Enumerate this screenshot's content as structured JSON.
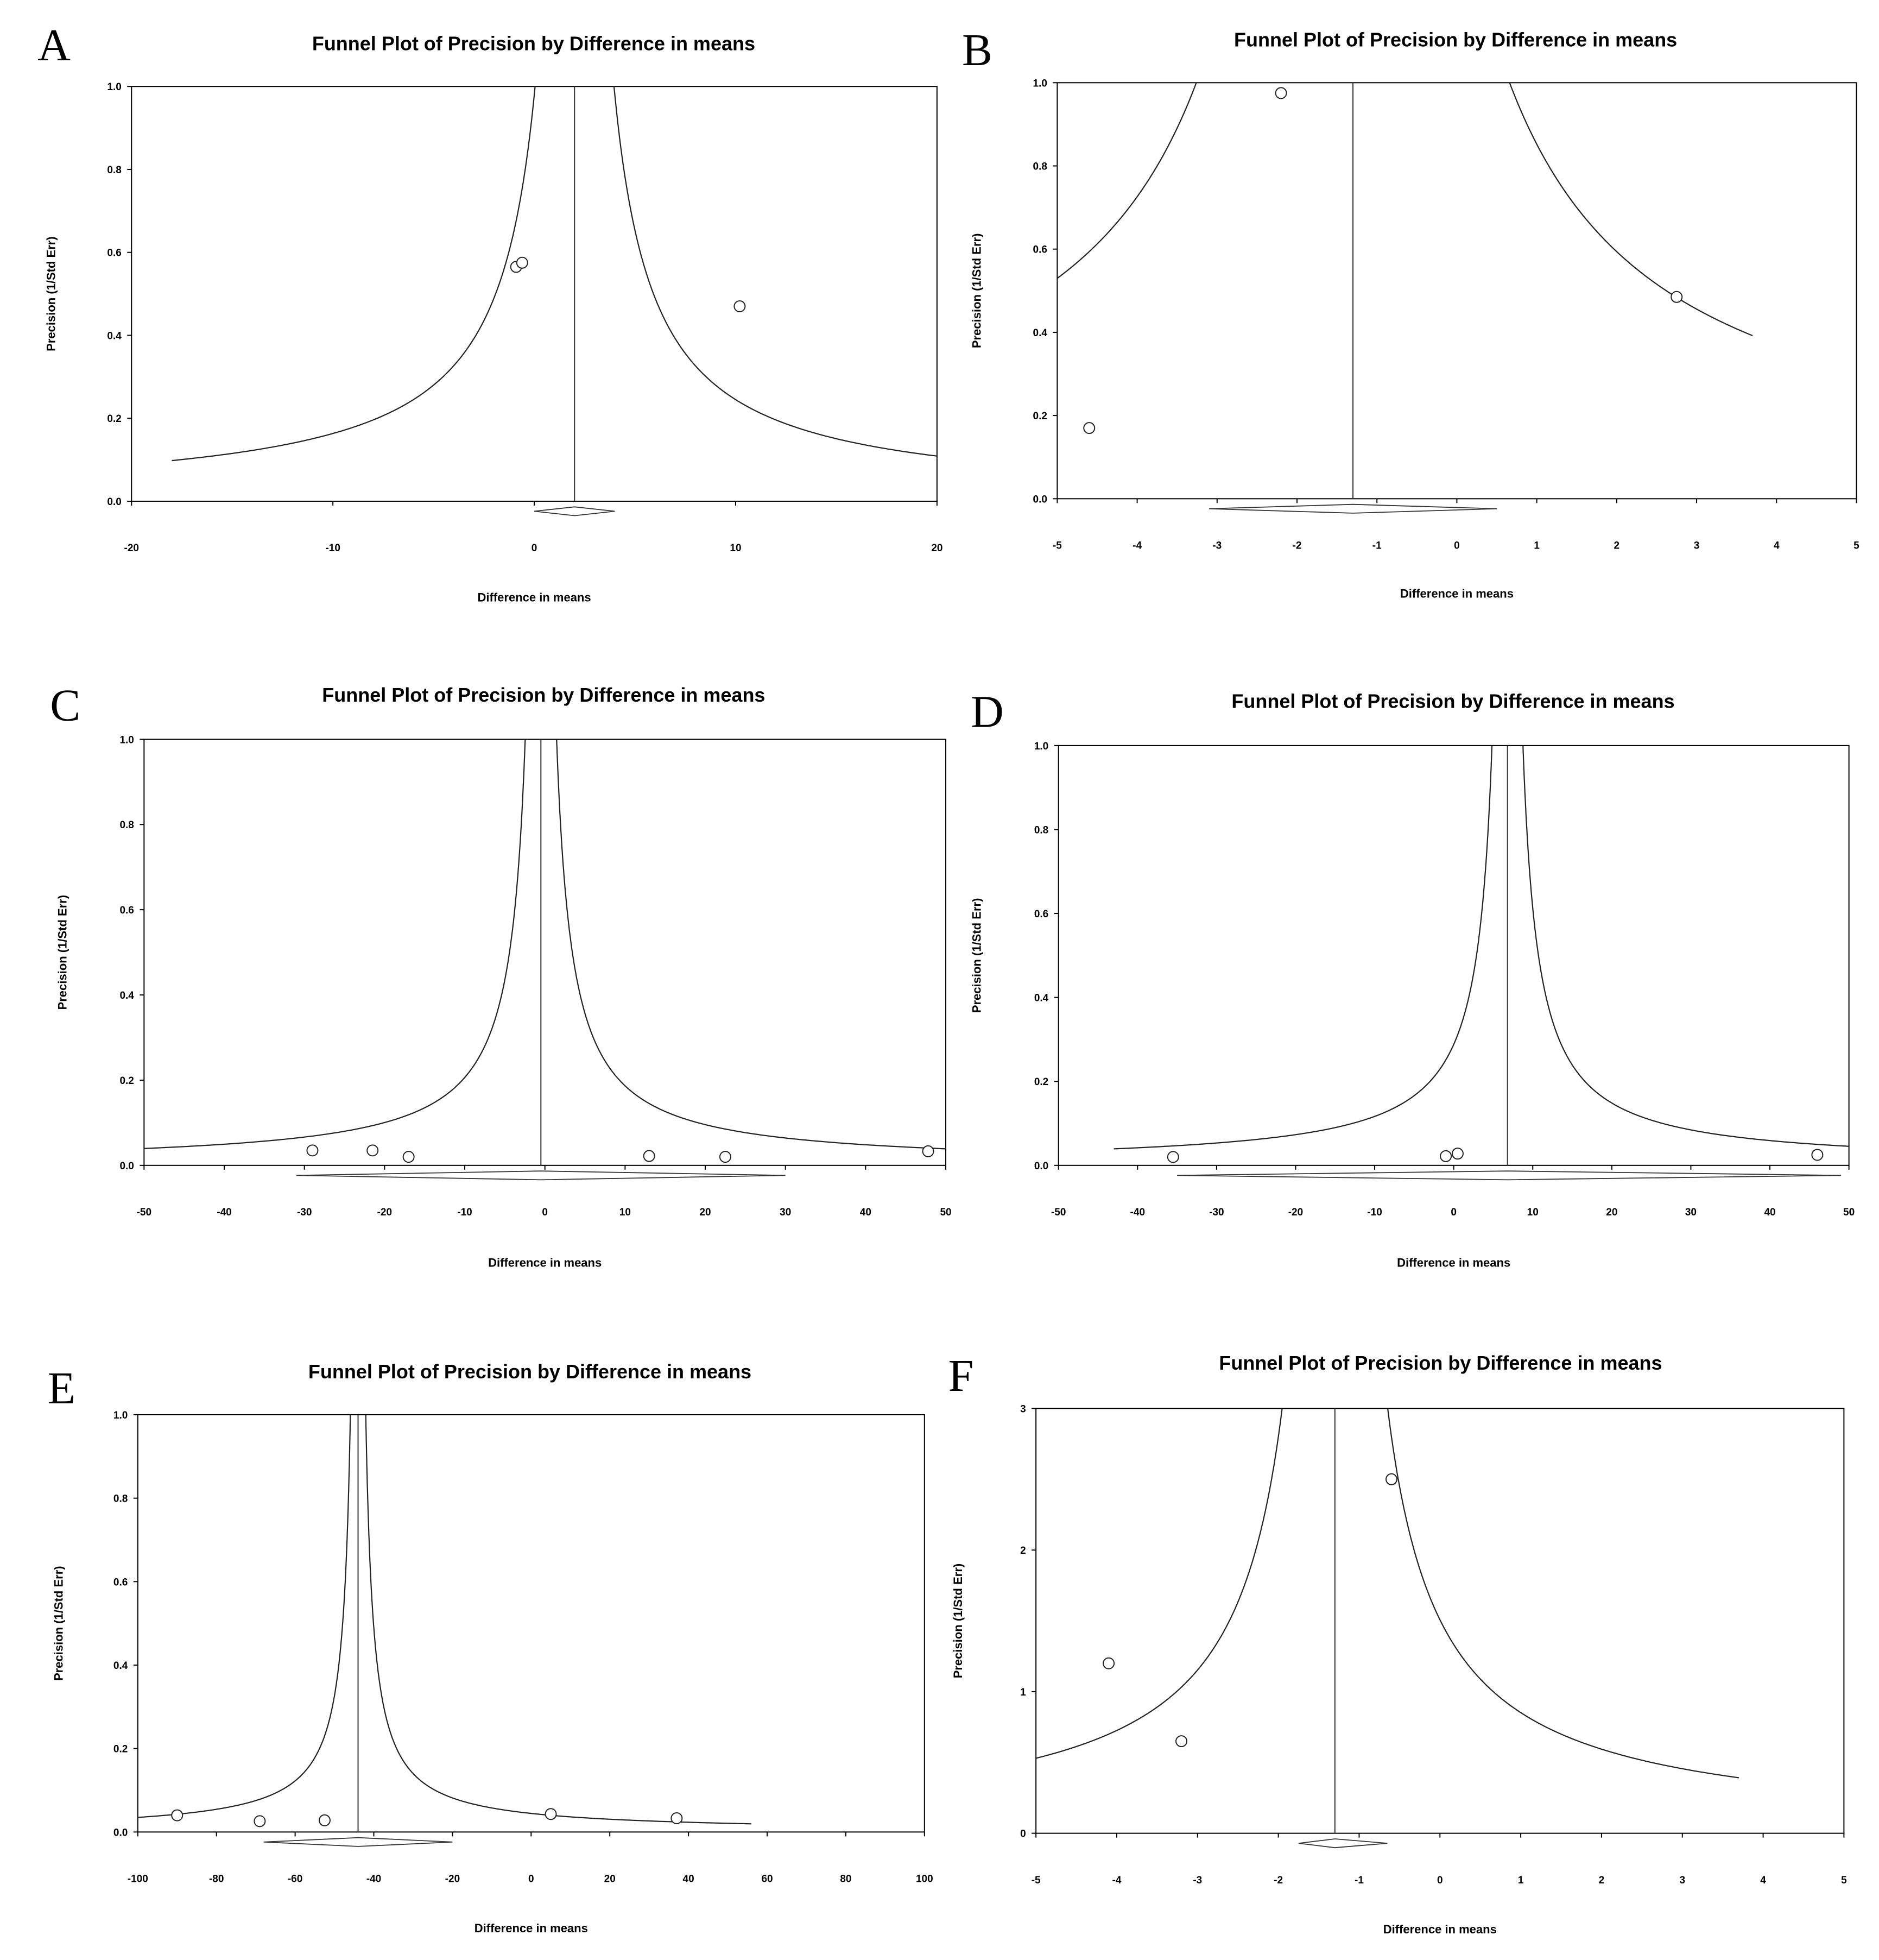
{
  "chart_data": [
    {
      "panel": "A",
      "type": "scatter",
      "title": "Funnel Plot of Precision by Difference in means",
      "xlabel": "Difference in means",
      "ylabel": "Precision (1/Std Err)",
      "xlim": [
        -20,
        20
      ],
      "ylim": [
        0,
        1
      ],
      "xticks": [
        -20,
        -10,
        0,
        10,
        20
      ],
      "yticks": [
        0.0,
        0.2,
        0.4,
        0.6,
        0.8,
        1.0
      ],
      "ytick_labels": [
        "0.0",
        "0.2",
        "0.4",
        "0.6",
        "0.8",
        "1.0"
      ],
      "pooled_estimate": 2.0,
      "diamond": {
        "center": 2.0,
        "lower": 0.0,
        "upper": 4.0
      },
      "funnel_z": 1.96,
      "funnel_x_range": [
        -18,
        20
      ],
      "points": [
        {
          "x": -0.9,
          "y": 0.565
        },
        {
          "x": -0.6,
          "y": 0.575
        },
        {
          "x": 10.2,
          "y": 0.47
        }
      ]
    },
    {
      "panel": "B",
      "type": "scatter",
      "title": "Funnel Plot of Precision by Difference in means",
      "xlabel": "Difference in means",
      "ylabel": "Precision (1/Std Err)",
      "xlim": [
        -5,
        5
      ],
      "ylim": [
        0,
        1
      ],
      "xticks": [
        -5,
        -4,
        -3,
        -2,
        -1,
        0,
        1,
        2,
        3,
        4,
        5
      ],
      "yticks": [
        0.0,
        0.2,
        0.4,
        0.6,
        0.8,
        1.0
      ],
      "ytick_labels": [
        "0.0",
        "0.2",
        "0.4",
        "0.6",
        "0.8",
        "1.0"
      ],
      "pooled_estimate": -1.3,
      "diamond": {
        "center": -1.3,
        "lower": -3.1,
        "upper": 0.5
      },
      "funnel_z": 1.96,
      "funnel_x_range": [
        -5,
        3.7
      ],
      "points": [
        {
          "x": -4.6,
          "y": 0.17
        },
        {
          "x": -2.2,
          "y": 0.975
        },
        {
          "x": 2.75,
          "y": 0.485
        }
      ]
    },
    {
      "panel": "C",
      "type": "scatter",
      "title": "Funnel Plot of Precision by Difference in means",
      "xlabel": "Difference in means",
      "ylabel": "Precision (1/Std Err)",
      "xlim": [
        -50,
        50
      ],
      "ylim": [
        0,
        1
      ],
      "xticks": [
        -50,
        -40,
        -30,
        -20,
        -10,
        0,
        10,
        20,
        30,
        40,
        50
      ],
      "yticks": [
        0.0,
        0.2,
        0.4,
        0.6,
        0.8,
        1.0
      ],
      "ytick_labels": [
        "0.0",
        "0.2",
        "0.4",
        "0.6",
        "0.8",
        "1.0"
      ],
      "pooled_estimate": -0.5,
      "diamond": {
        "center": -0.5,
        "lower": -31,
        "upper": 30
      },
      "funnel_z": 1.96,
      "funnel_x_range": [
        -50,
        50
      ],
      "points": [
        {
          "x": -29,
          "y": 0.035
        },
        {
          "x": -21.5,
          "y": 0.035
        },
        {
          "x": -17,
          "y": 0.02
        },
        {
          "x": 13,
          "y": 0.022
        },
        {
          "x": 22.5,
          "y": 0.02
        },
        {
          "x": 47.8,
          "y": 0.033
        }
      ]
    },
    {
      "panel": "D",
      "type": "scatter",
      "title": "Funnel Plot of Precision by Difference in means",
      "xlabel": "Difference in means",
      "ylabel": "Precision (1/Std Err)",
      "xlim": [
        -50,
        50
      ],
      "ylim": [
        0,
        1
      ],
      "xticks": [
        -50,
        -40,
        -30,
        -20,
        -10,
        0,
        10,
        20,
        30,
        40,
        50
      ],
      "yticks": [
        0.0,
        0.2,
        0.4,
        0.6,
        0.8,
        1.0
      ],
      "ytick_labels": [
        "0.0",
        "0.2",
        "0.4",
        "0.6",
        "0.8",
        "1.0"
      ],
      "pooled_estimate": 6.8,
      "diamond": {
        "center": 6.8,
        "lower": -35,
        "upper": 49
      },
      "funnel_z": 1.96,
      "funnel_x_range": [
        -43,
        50
      ],
      "points": [
        {
          "x": -35.5,
          "y": 0.02
        },
        {
          "x": -1,
          "y": 0.022
        },
        {
          "x": 0.5,
          "y": 0.028
        },
        {
          "x": 46,
          "y": 0.025
        }
      ]
    },
    {
      "panel": "E",
      "type": "scatter",
      "title": "Funnel Plot of Precision by Difference in means",
      "xlabel": "Difference in means",
      "ylabel": "Precision (1/Std Err)",
      "xlim": [
        -100,
        100
      ],
      "ylim": [
        0,
        1
      ],
      "xticks": [
        -100,
        -80,
        -60,
        -40,
        -20,
        0,
        20,
        40,
        60,
        80,
        100
      ],
      "yticks": [
        0.0,
        0.2,
        0.4,
        0.6,
        0.8,
        1.0
      ],
      "ytick_labels": [
        "0.0",
        "0.2",
        "0.4",
        "0.6",
        "0.8",
        "1.0"
      ],
      "pooled_estimate": -44,
      "diamond": {
        "center": -44,
        "lower": -68,
        "upper": -20
      },
      "funnel_z": 1.96,
      "funnel_x_range": [
        -100,
        56
      ],
      "points": [
        {
          "x": -90,
          "y": 0.04
        },
        {
          "x": -69,
          "y": 0.026
        },
        {
          "x": -52.5,
          "y": 0.028
        },
        {
          "x": 5,
          "y": 0.043
        },
        {
          "x": 37,
          "y": 0.033
        }
      ]
    },
    {
      "panel": "F",
      "type": "scatter",
      "title": "Funnel Plot of Precision by Difference in means",
      "xlabel": "Difference in means",
      "ylabel": "Precision (1/Std Err)",
      "xlim": [
        -5,
        5
      ],
      "ylim": [
        0,
        3
      ],
      "xticks": [
        -5,
        -4,
        -3,
        -2,
        -1,
        0,
        1,
        2,
        3,
        4,
        5
      ],
      "yticks": [
        0,
        1,
        2,
        3
      ],
      "ytick_labels": [
        "0",
        "1",
        "2",
        "3"
      ],
      "pooled_estimate": -1.3,
      "diamond": {
        "center": -1.3,
        "lower": -1.75,
        "upper": -0.65
      },
      "funnel_z": 1.96,
      "funnel_x_range": [
        -5,
        3.7
      ],
      "points": [
        {
          "x": -4.1,
          "y": 1.2
        },
        {
          "x": -3.2,
          "y": 0.65
        },
        {
          "x": -0.6,
          "y": 2.5
        }
      ]
    }
  ]
}
